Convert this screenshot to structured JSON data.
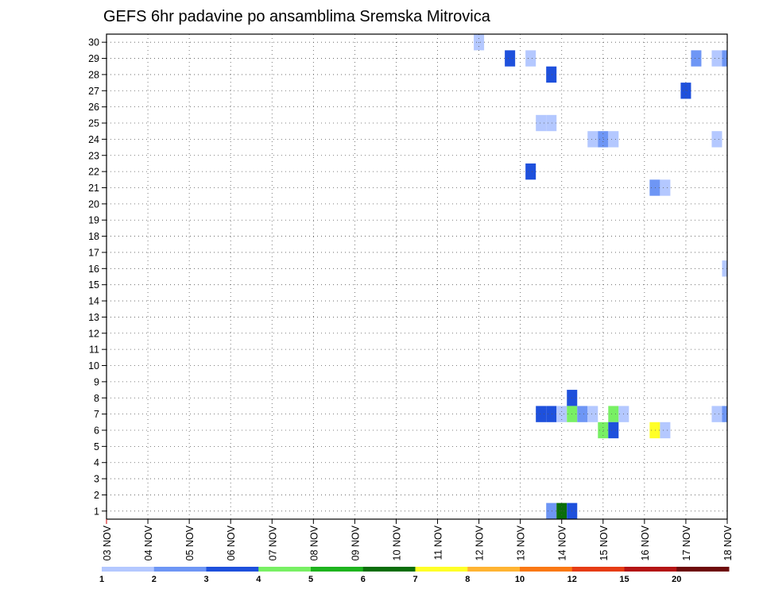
{
  "chart_data": {
    "type": "heatmap",
    "title": "GEFS 6hr padavine po ansamblima Sremska Mitrovica",
    "x_labels": [
      "03 NOV",
      "04 NOV",
      "05 NOV",
      "06 NOV",
      "07 NOV",
      "08 NOV",
      "09 NOV",
      "10 NOV",
      "11 NOV",
      "12 NOV",
      "13 NOV",
      "14 NOV",
      "15 NOV",
      "16 NOV",
      "17 NOV",
      "18 NOV"
    ],
    "y_labels": [
      "1",
      "2",
      "3",
      "4",
      "5",
      "6",
      "7",
      "8",
      "9",
      "10",
      "11",
      "12",
      "13",
      "14",
      "15",
      "16",
      "17",
      "18",
      "19",
      "20",
      "21",
      "22",
      "23",
      "24",
      "25",
      "26",
      "27",
      "28",
      "29",
      "30"
    ],
    "xlim": [
      0,
      15
    ],
    "ylim": [
      0.5,
      30.5
    ],
    "grid": true,
    "legend_placement": "bottom",
    "legend": {
      "labels": [
        "1",
        "2",
        "3",
        "4",
        "5",
        "6",
        "7",
        "8",
        "10",
        "12",
        "15",
        "20"
      ],
      "colors": [
        "#b4c8ff",
        "#6e96f5",
        "#1e50dc",
        "#78f064",
        "#1eb41e",
        "#0a6e0a",
        "#ffff28",
        "#ffb432",
        "#fa7814",
        "#e63c14",
        "#b41414",
        "#6e0a0a"
      ]
    },
    "color_key": {
      "lb": "#b4c8ff",
      "mb": "#6e96f5",
      "db": "#1e50dc",
      "lg": "#78f064",
      "dg": "#0a6e0a",
      "ye": "#ffff28"
    },
    "cells": [
      {
        "x": 9.0,
        "y": 30,
        "c": "lb"
      },
      {
        "x": 9.75,
        "y": 29,
        "c": "db"
      },
      {
        "x": 10.25,
        "y": 29,
        "c": "lb"
      },
      {
        "x": 14.25,
        "y": 29,
        "c": "mb"
      },
      {
        "x": 14.75,
        "y": 29,
        "c": "lb"
      },
      {
        "x": 15.0,
        "y": 29,
        "c": "mb"
      },
      {
        "x": 10.75,
        "y": 28,
        "c": "db"
      },
      {
        "x": 14.0,
        "y": 27,
        "c": "db"
      },
      {
        "x": 10.5,
        "y": 25,
        "c": "lb"
      },
      {
        "x": 10.75,
        "y": 25,
        "c": "lb"
      },
      {
        "x": 11.75,
        "y": 24,
        "c": "lb"
      },
      {
        "x": 12.0,
        "y": 24,
        "c": "mb"
      },
      {
        "x": 12.25,
        "y": 24,
        "c": "lb"
      },
      {
        "x": 14.75,
        "y": 24,
        "c": "lb"
      },
      {
        "x": 10.25,
        "y": 22,
        "c": "db"
      },
      {
        "x": 13.25,
        "y": 21,
        "c": "mb"
      },
      {
        "x": 13.5,
        "y": 21,
        "c": "lb"
      },
      {
        "x": 15.0,
        "y": 16,
        "c": "lb"
      },
      {
        "x": 11.25,
        "y": 8,
        "c": "db"
      },
      {
        "x": 10.5,
        "y": 7,
        "c": "db"
      },
      {
        "x": 10.75,
        "y": 7,
        "c": "db"
      },
      {
        "x": 11.0,
        "y": 7,
        "c": "lb"
      },
      {
        "x": 11.25,
        "y": 7,
        "c": "lg"
      },
      {
        "x": 11.5,
        "y": 7,
        "c": "mb"
      },
      {
        "x": 11.75,
        "y": 7,
        "c": "lb"
      },
      {
        "x": 12.25,
        "y": 7,
        "c": "lg"
      },
      {
        "x": 12.5,
        "y": 7,
        "c": "lb"
      },
      {
        "x": 14.75,
        "y": 7,
        "c": "lb"
      },
      {
        "x": 15.0,
        "y": 7,
        "c": "mb"
      },
      {
        "x": 12.0,
        "y": 6,
        "c": "lg"
      },
      {
        "x": 12.25,
        "y": 6,
        "c": "db"
      },
      {
        "x": 13.25,
        "y": 6,
        "c": "ye"
      },
      {
        "x": 13.5,
        "y": 6,
        "c": "lb"
      },
      {
        "x": 10.75,
        "y": 1,
        "c": "mb"
      },
      {
        "x": 11.0,
        "y": 1,
        "c": "dg"
      },
      {
        "x": 11.25,
        "y": 1,
        "c": "db"
      }
    ]
  }
}
